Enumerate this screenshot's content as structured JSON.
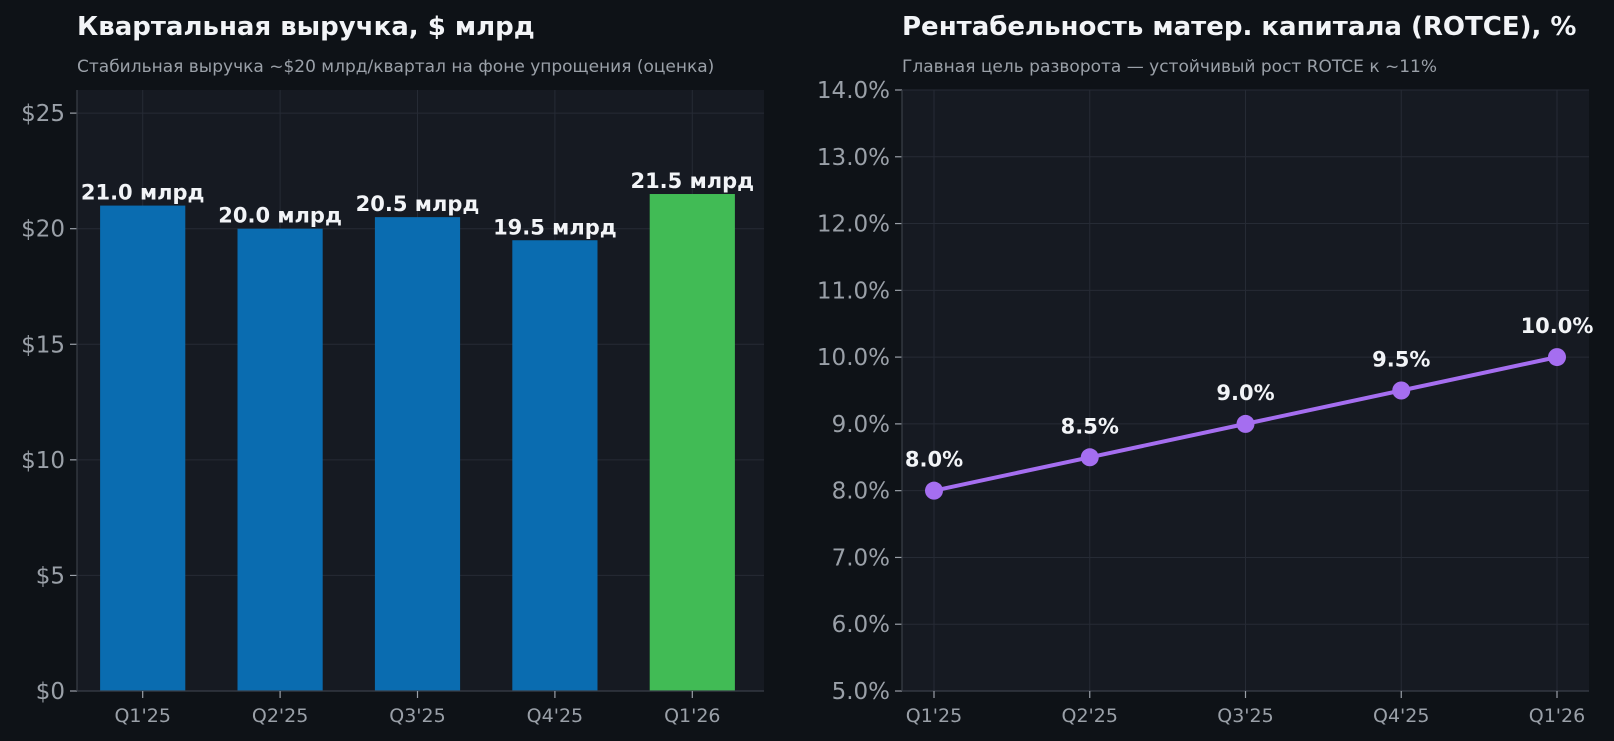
{
  "colors": {
    "background": "#0e1217",
    "plot_background": "#161a22",
    "grid": "#262b35",
    "bar": "#0a6cb0",
    "bar_highlight": "#41bb55",
    "line": "#a56ef0",
    "text": "#f2f4f7",
    "muted": "#9aa0a8"
  },
  "chart_data": [
    {
      "type": "bar",
      "title": "Квартальная выручка, $ млрд",
      "subtitle": "Стабильная выручка ~$20 млрд/квартал на фоне упрощения (оценка)",
      "categories": [
        "Q1'25",
        "Q2'25",
        "Q3'25",
        "Q4'25",
        "Q1'26"
      ],
      "values": [
        21.0,
        20.0,
        20.5,
        19.5,
        21.5
      ],
      "data_labels": [
        "21.0 млрд",
        "20.0 млрд",
        "20.5 млрд",
        "19.5 млрд",
        "21.5 млрд"
      ],
      "highlight_index": 4,
      "ylim": [
        0,
        26
      ],
      "yticks": [
        0,
        5,
        10,
        15,
        20,
        25
      ],
      "ytick_labels": [
        "$0",
        "$5",
        "$10",
        "$15",
        "$20",
        "$25"
      ],
      "grid": true,
      "legend": false
    },
    {
      "type": "line",
      "title": "Рентабельность матер. капитала (ROTCE), %",
      "subtitle": "Главная цель разворота — устойчивый рост ROTCE к ~11%",
      "categories": [
        "Q1'25",
        "Q2'25",
        "Q3'25",
        "Q4'25",
        "Q1'26"
      ],
      "values": [
        8.0,
        8.5,
        9.0,
        9.5,
        10.0
      ],
      "data_labels": [
        "8.0%",
        "8.5%",
        "9.0%",
        "9.5%",
        "10.0%"
      ],
      "ylim": [
        5,
        14
      ],
      "yticks": [
        5,
        6,
        7,
        8,
        9,
        10,
        11,
        12,
        13,
        14
      ],
      "ytick_labels": [
        "5.0%",
        "6.0%",
        "7.0%",
        "8.0%",
        "9.0%",
        "10.0%",
        "11.0%",
        "12.0%",
        "13.0%",
        "14.0%"
      ],
      "grid": true,
      "legend": false,
      "markers": true
    }
  ]
}
